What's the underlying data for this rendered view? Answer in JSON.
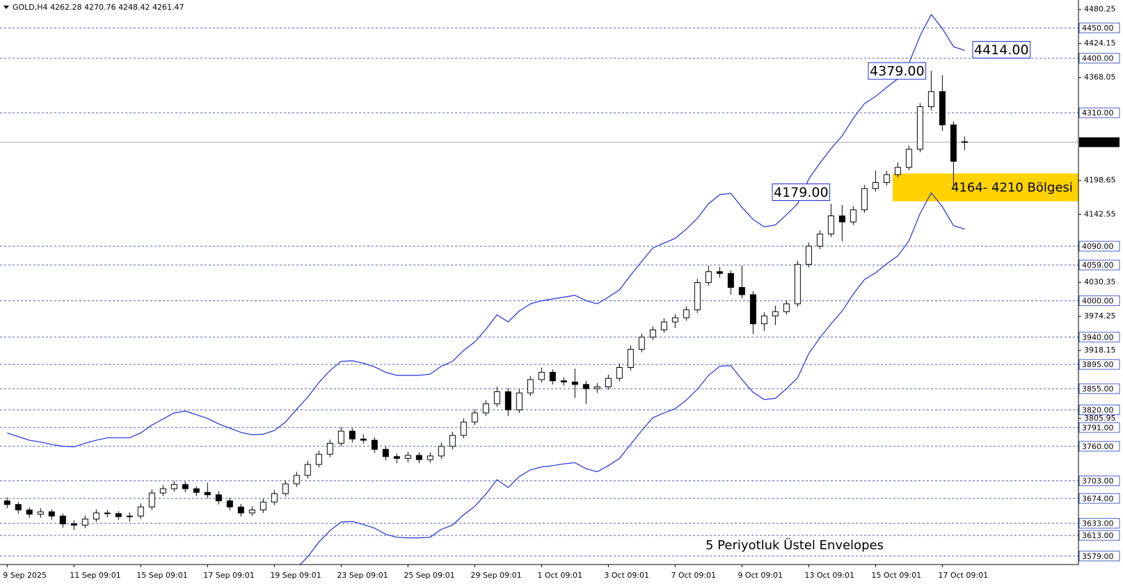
{
  "chart_data": {
    "type": "candlestick",
    "symbol": "GOLD,H4",
    "categories": [
      "9 Sep 2025",
      null,
      null,
      null,
      null,
      null,
      "11 Sep 09:01",
      null,
      null,
      null,
      null,
      null,
      "15 Sep 09:01",
      null,
      null,
      null,
      null,
      null,
      "17 Sep 09:01",
      null,
      null,
      null,
      null,
      null,
      "19 Sep 09:01",
      null,
      null,
      null,
      null,
      null,
      "23 Sep 09:01",
      null,
      null,
      null,
      null,
      null,
      "25 Sep 09:01",
      null,
      null,
      null,
      null,
      null,
      "29 Sep 09:01",
      null,
      null,
      null,
      null,
      null,
      "1 Oct 09:01",
      null,
      null,
      null,
      null,
      null,
      "3 Oct 09:01",
      null,
      null,
      null,
      null,
      null,
      "7 Oct 09:01",
      null,
      null,
      null,
      null,
      null,
      "9 Oct 09:01",
      null,
      null,
      null,
      null,
      null,
      "13 Oct 09:01",
      null,
      null,
      null,
      null,
      null,
      "15 Oct 09:01",
      null,
      null,
      null,
      null,
      null,
      "17 Oct 09:01",
      null,
      null
    ],
    "candles": [
      [
        3670,
        3676,
        3658,
        3664
      ],
      [
        3664,
        3668,
        3649,
        3655
      ],
      [
        3655,
        3659,
        3642,
        3648
      ],
      [
        3648,
        3658,
        3642,
        3652
      ],
      [
        3652,
        3656,
        3639,
        3645
      ],
      [
        3645,
        3649,
        3626,
        3632
      ],
      [
        3632,
        3638,
        3622,
        3630
      ],
      [
        3630,
        3646,
        3625,
        3640
      ],
      [
        3640,
        3656,
        3635,
        3650
      ],
      [
        3650,
        3655,
        3643,
        3649
      ],
      [
        3649,
        3653,
        3638,
        3644
      ],
      [
        3644,
        3651,
        3636,
        3645
      ],
      [
        3645,
        3666,
        3640,
        3660
      ],
      [
        3660,
        3689,
        3655,
        3683
      ],
      [
        3683,
        3696,
        3678,
        3690
      ],
      [
        3690,
        3703,
        3685,
        3697
      ],
      [
        3697,
        3702,
        3684,
        3690
      ],
      [
        3690,
        3694,
        3678,
        3684
      ],
      [
        3684,
        3700,
        3674,
        3680
      ],
      [
        3680,
        3686,
        3664,
        3670
      ],
      [
        3670,
        3675,
        3654,
        3660
      ],
      [
        3660,
        3665,
        3644,
        3650
      ],
      [
        3650,
        3661,
        3645,
        3655
      ],
      [
        3655,
        3674,
        3650,
        3668
      ],
      [
        3668,
        3688,
        3663,
        3682
      ],
      [
        3682,
        3704,
        3677,
        3698
      ],
      [
        3698,
        3718,
        3693,
        3712
      ],
      [
        3712,
        3736,
        3707,
        3730
      ],
      [
        3730,
        3753,
        3725,
        3747
      ],
      [
        3747,
        3771,
        3742,
        3765
      ],
      [
        3765,
        3792,
        3760,
        3785
      ],
      [
        3785,
        3790,
        3766,
        3772
      ],
      [
        3772,
        3780,
        3764,
        3770
      ],
      [
        3770,
        3775,
        3749,
        3755
      ],
      [
        3755,
        3760,
        3737,
        3743
      ],
      [
        3743,
        3748,
        3732,
        3740
      ],
      [
        3740,
        3751,
        3733,
        3745
      ],
      [
        3745,
        3750,
        3732,
        3738
      ],
      [
        3738,
        3750,
        3733,
        3744
      ],
      [
        3744,
        3766,
        3739,
        3760
      ],
      [
        3760,
        3784,
        3755,
        3778
      ],
      [
        3778,
        3806,
        3773,
        3800
      ],
      [
        3800,
        3821,
        3795,
        3815
      ],
      [
        3815,
        3836,
        3810,
        3830
      ],
      [
        3830,
        3858,
        3825,
        3850
      ],
      [
        3850,
        3856,
        3810,
        3820
      ],
      [
        3820,
        3854,
        3815,
        3848
      ],
      [
        3848,
        3876,
        3843,
        3870
      ],
      [
        3870,
        3890,
        3865,
        3882
      ],
      [
        3882,
        3887,
        3862,
        3868
      ],
      [
        3868,
        3874,
        3860,
        3866
      ],
      [
        3866,
        3888,
        3840,
        3862
      ],
      [
        3862,
        3868,
        3830,
        3855
      ],
      [
        3855,
        3864,
        3848,
        3858
      ],
      [
        3858,
        3878,
        3853,
        3872
      ],
      [
        3872,
        3896,
        3867,
        3890
      ],
      [
        3890,
        3926,
        3885,
        3920
      ],
      [
        3920,
        3946,
        3915,
        3940
      ],
      [
        3940,
        3958,
        3935,
        3952
      ],
      [
        3952,
        3971,
        3947,
        3965
      ],
      [
        3965,
        3978,
        3955,
        3972
      ],
      [
        3972,
        3991,
        3967,
        3985
      ],
      [
        3985,
        4036,
        3980,
        4030
      ],
      [
        4030,
        4058,
        4025,
        4048
      ],
      [
        4048,
        4056,
        4038,
        4045
      ],
      [
        4045,
        4050,
        4010,
        4022
      ],
      [
        4022,
        4058,
        4004,
        4010
      ],
      [
        4010,
        4016,
        3945,
        3962
      ],
      [
        3962,
        3981,
        3950,
        3975
      ],
      [
        3975,
        3992,
        3960,
        3982
      ],
      [
        3982,
        4001,
        3977,
        3995
      ],
      [
        3995,
        4066,
        3990,
        4060
      ],
      [
        4060,
        4096,
        4055,
        4090
      ],
      [
        4090,
        4116,
        4085,
        4110
      ],
      [
        4110,
        4160,
        4105,
        4140
      ],
      [
        4140,
        4158,
        4098,
        4130
      ],
      [
        4130,
        4156,
        4125,
        4150
      ],
      [
        4150,
        4191,
        4145,
        4185
      ],
      [
        4185,
        4215,
        4180,
        4195
      ],
      [
        4195,
        4214,
        4190,
        4208
      ],
      [
        4208,
        4228,
        4203,
        4220
      ],
      [
        4220,
        4256,
        4215,
        4250
      ],
      [
        4250,
        4326,
        4245,
        4320
      ],
      [
        4320,
        4379,
        4314,
        4345
      ],
      [
        4345,
        4372,
        4280,
        4290
      ],
      [
        4290,
        4296,
        4190,
        4230
      ],
      [
        4262.28,
        4270.76,
        4248.42,
        4261.47
      ]
    ],
    "envelopes": [
      {
        "color": "#1f2fd6",
        "values": [
          3782,
          3776,
          3770,
          3767,
          3763,
          3760,
          3759,
          3765,
          3770,
          3774,
          3774,
          3774,
          3782,
          3795,
          3805,
          3815,
          3818,
          3812,
          3806,
          3797,
          3790,
          3783,
          3779,
          3780,
          3786,
          3800,
          3821,
          3841,
          3865,
          3885,
          3900,
          3901,
          3897,
          3891,
          3882,
          3877,
          3877,
          3877,
          3879,
          3892,
          3900,
          3918,
          3932,
          3953,
          3977,
          3965,
          3983,
          3995,
          4000,
          4003,
          4006,
          4009,
          4000,
          3995,
          4006,
          4018,
          4042,
          4065,
          4087,
          4095,
          4103,
          4118,
          4136,
          4160,
          4175,
          4177,
          4154,
          4134,
          4122,
          4125,
          4142,
          4160,
          4201,
          4227,
          4251,
          4272,
          4301,
          4325,
          4337,
          4352,
          4366,
          4392,
          4437,
          4472,
          4449,
          4419,
          4413
        ]
      },
      {
        "color": "#1f2fd6",
        "values": [
          3534,
          3527,
          3521,
          3517,
          3513,
          3509,
          3508,
          3513,
          3518,
          3521,
          3520,
          3520,
          3527,
          3540,
          3549,
          3559,
          3561,
          3555,
          3548,
          3539,
          3531,
          3523,
          3519,
          3519,
          3525,
          3538,
          3559,
          3578,
          3602,
          3621,
          3635,
          3636,
          3631,
          3625,
          3615,
          3610,
          3609,
          3609,
          3610,
          3623,
          3630,
          3647,
          3661,
          3681,
          3705,
          3692,
          3710,
          3721,
          3726,
          3728,
          3731,
          3733,
          3723,
          3718,
          3728,
          3740,
          3763,
          3786,
          3807,
          3815,
          3822,
          3836,
          3854,
          3877,
          3892,
          3893,
          3870,
          3849,
          3837,
          3839,
          3855,
          3873,
          3913,
          3939,
          3962,
          3983,
          4011,
          4035,
          4046,
          4061,
          4074,
          4099,
          4144,
          4178,
          4155,
          4124,
          4118
        ]
      }
    ],
    "envelope_label": "5 Periyotluk Üstel Envelopes",
    "ylim": [
      3565,
      4496
    ],
    "yticks": [
      4480.25,
      {
        "value": 4450,
        "label": "4450.00"
      },
      4424.15,
      {
        "value": 4400,
        "label": "4400.00"
      },
      4368.05,
      {
        "value": 4310,
        "label": "4310.00"
      },
      4198.65,
      4142.55,
      {
        "value": 4090,
        "label": "4090.00"
      },
      {
        "value": 4059,
        "label": "4059.00"
      },
      4030.35,
      {
        "value": 4000,
        "label": "4000.00"
      },
      3974.25,
      {
        "value": 3940,
        "label": "3940.00"
      },
      3918.15,
      {
        "value": 3895,
        "label": "3895.00"
      },
      {
        "value": 3855,
        "label": "3855.00"
      },
      {
        "value": 3820,
        "label": "3820.00"
      },
      3805.95,
      {
        "value": 3791,
        "label": "3791.00"
      },
      {
        "value": 3760,
        "label": "3760.00"
      },
      {
        "value": 3703,
        "label": "3703.00"
      },
      {
        "value": 3674,
        "label": "3674.00"
      },
      {
        "value": 3633,
        "label": "3633.00"
      },
      {
        "value": 3613,
        "label": "3613.00"
      },
      {
        "value": 3579,
        "label": "3579.00"
      }
    ],
    "annotations": [
      {
        "value": 4379,
        "label": "4379.00"
      },
      {
        "value": 4414,
        "label": "4414.00"
      },
      {
        "value": 4179,
        "label": "4179.00"
      }
    ],
    "zone": {
      "low": 4164,
      "high": 4210,
      "label": "4164- 4210 Bölgesi",
      "color": "#ffd200"
    }
  }
}
